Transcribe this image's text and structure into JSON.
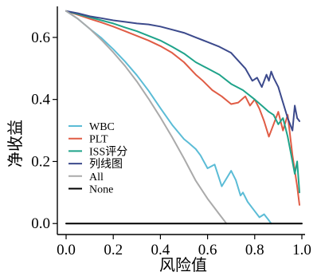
{
  "chart_data": {
    "type": "line",
    "xlabel": "风险值",
    "ylabel": "净收益",
    "xlim": [
      0,
      1
    ],
    "ylim": [
      -0.02,
      0.7
    ],
    "x_ticks": [
      "0.0",
      "0.2",
      "0.4",
      "0.6",
      "0.8",
      "1.0"
    ],
    "y_ticks": [
      "0.0",
      "0.2",
      "0.4",
      "0.6"
    ],
    "legend_position": "left-center",
    "series": [
      {
        "name": "WBC",
        "color": "#5bbcd6",
        "x": [
          0.0,
          0.05,
          0.1,
          0.15,
          0.2,
          0.25,
          0.3,
          0.35,
          0.4,
          0.45,
          0.5,
          0.52,
          0.55,
          0.57,
          0.6,
          0.63,
          0.66,
          0.7,
          0.72,
          0.74,
          0.75,
          0.77,
          0.8,
          0.82,
          0.84,
          0.86,
          0.87
        ],
        "y": [
          0.685,
          0.66,
          0.628,
          0.598,
          0.562,
          0.522,
          0.478,
          0.428,
          0.372,
          0.318,
          0.272,
          0.26,
          0.24,
          0.22,
          0.178,
          0.19,
          0.12,
          0.17,
          0.14,
          0.09,
          0.1,
          0.07,
          0.04,
          0.02,
          0.03,
          0.01,
          0.0
        ]
      },
      {
        "name": "PLT",
        "color": "#e05c45",
        "x": [
          0.0,
          0.05,
          0.1,
          0.15,
          0.2,
          0.25,
          0.3,
          0.35,
          0.4,
          0.45,
          0.5,
          0.55,
          0.58,
          0.62,
          0.66,
          0.7,
          0.73,
          0.76,
          0.78,
          0.8,
          0.82,
          0.84,
          0.86,
          0.88,
          0.9,
          0.92,
          0.94,
          0.96,
          0.98,
          0.99
        ],
        "y": [
          0.685,
          0.673,
          0.66,
          0.648,
          0.635,
          0.62,
          0.605,
          0.59,
          0.572,
          0.55,
          0.52,
          0.48,
          0.46,
          0.43,
          0.41,
          0.385,
          0.39,
          0.41,
          0.38,
          0.4,
          0.37,
          0.33,
          0.28,
          0.32,
          0.36,
          0.3,
          0.35,
          0.22,
          0.12,
          0.06
        ]
      },
      {
        "name": "ISS评分",
        "color": "#1fa38a",
        "x": [
          0.0,
          0.05,
          0.1,
          0.15,
          0.2,
          0.25,
          0.3,
          0.35,
          0.4,
          0.45,
          0.5,
          0.55,
          0.6,
          0.65,
          0.7,
          0.75,
          0.8,
          0.83,
          0.86,
          0.88,
          0.9,
          0.92,
          0.94,
          0.96,
          0.97,
          0.98,
          0.99
        ],
        "y": [
          0.685,
          0.675,
          0.665,
          0.655,
          0.645,
          0.632,
          0.62,
          0.605,
          0.59,
          0.57,
          0.548,
          0.52,
          0.5,
          0.48,
          0.45,
          0.43,
          0.4,
          0.38,
          0.36,
          0.35,
          0.32,
          0.34,
          0.28,
          0.2,
          0.16,
          0.2,
          0.1
        ]
      },
      {
        "name": "列线图",
        "color": "#3c4a8c",
        "x": [
          0.0,
          0.05,
          0.1,
          0.15,
          0.2,
          0.25,
          0.3,
          0.35,
          0.4,
          0.45,
          0.5,
          0.55,
          0.6,
          0.65,
          0.7,
          0.73,
          0.76,
          0.79,
          0.81,
          0.83,
          0.85,
          0.86,
          0.87,
          0.88,
          0.9,
          0.92,
          0.94,
          0.96,
          0.97,
          0.98,
          0.99
        ],
        "y": [
          0.685,
          0.678,
          0.668,
          0.662,
          0.655,
          0.65,
          0.645,
          0.642,
          0.635,
          0.625,
          0.615,
          0.6,
          0.585,
          0.57,
          0.55,
          0.525,
          0.5,
          0.46,
          0.47,
          0.44,
          0.48,
          0.46,
          0.49,
          0.47,
          0.44,
          0.39,
          0.34,
          0.3,
          0.38,
          0.34,
          0.33
        ]
      },
      {
        "name": "All",
        "color": "#aaaaaa",
        "x": [
          0.0,
          0.05,
          0.1,
          0.15,
          0.2,
          0.25,
          0.3,
          0.35,
          0.4,
          0.45,
          0.5,
          0.55,
          0.6,
          0.65,
          0.68
        ],
        "y": [
          0.685,
          0.66,
          0.628,
          0.592,
          0.552,
          0.508,
          0.458,
          0.402,
          0.342,
          0.278,
          0.21,
          0.138,
          0.08,
          0.03,
          0.0
        ]
      },
      {
        "name": "None",
        "color": "#000000",
        "x": [
          0.0,
          1.0
        ],
        "y": [
          0.0,
          0.0
        ]
      }
    ]
  }
}
